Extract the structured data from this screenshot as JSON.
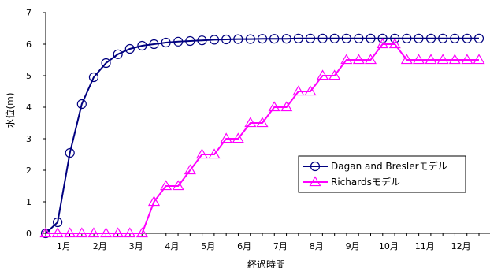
{
  "chart_data": {
    "type": "line",
    "ylabel": "水位(m)",
    "xlabel": "経過時間",
    "ylim": [
      0,
      7
    ],
    "y_ticks": [
      "0",
      "1",
      "2",
      "3",
      "4",
      "5",
      "6",
      "7"
    ],
    "x_tick_labels": [
      "1月",
      "2月",
      "3月",
      "4月",
      "5月",
      "6月",
      "7月",
      "8月",
      "9月",
      "10月",
      "11月",
      "12月"
    ],
    "legend_position": "right-center",
    "grid": false,
    "series": [
      {
        "name": "Dagan and Breslerモデル",
        "color": "#000080",
        "marker": "circle",
        "x": [
          0,
          0.33,
          0.67,
          1.0,
          1.33,
          1.67,
          2.0,
          2.33,
          2.67,
          3.0,
          3.33,
          3.67,
          4.0,
          4.33,
          4.67,
          5.0,
          5.33,
          5.67,
          6.0,
          6.33,
          6.67,
          7.0,
          7.33,
          7.67,
          8.0,
          8.33,
          8.67,
          9.0,
          9.33,
          9.67,
          10.0,
          10.33,
          10.67,
          11.0,
          11.33,
          11.67,
          12.0
        ],
        "values": [
          0.0,
          0.35,
          2.55,
          4.1,
          4.95,
          5.4,
          5.68,
          5.85,
          5.95,
          6.0,
          6.05,
          6.08,
          6.1,
          6.12,
          6.14,
          6.15,
          6.16,
          6.16,
          6.17,
          6.17,
          6.17,
          6.18,
          6.18,
          6.18,
          6.18,
          6.18,
          6.18,
          6.18,
          6.18,
          6.18,
          6.18,
          6.18,
          6.18,
          6.18,
          6.18,
          6.18,
          6.18
        ]
      },
      {
        "name": "Richardsモデル",
        "color": "#ff00ff",
        "marker": "triangle",
        "x": [
          0,
          0.33,
          0.67,
          1.0,
          1.33,
          1.67,
          2.0,
          2.33,
          2.67,
          3.0,
          3.33,
          3.67,
          4.0,
          4.33,
          4.67,
          5.0,
          5.33,
          5.67,
          6.0,
          6.33,
          6.67,
          7.0,
          7.33,
          7.67,
          8.0,
          8.33,
          8.67,
          9.0,
          9.33,
          9.67,
          10.0,
          10.33,
          10.67,
          11.0,
          11.33,
          11.67,
          12.0
        ],
        "values": [
          0,
          0,
          0,
          0,
          0,
          0,
          0,
          0,
          0,
          1.0,
          1.5,
          1.5,
          2.0,
          2.5,
          2.5,
          3.0,
          3.0,
          3.5,
          3.5,
          4.0,
          4.0,
          4.5,
          4.5,
          5.0,
          5.0,
          5.5,
          5.5,
          5.5,
          6.0,
          6.0,
          5.5,
          5.5,
          5.5,
          5.5,
          5.5,
          5.5,
          5.5
        ]
      }
    ]
  }
}
